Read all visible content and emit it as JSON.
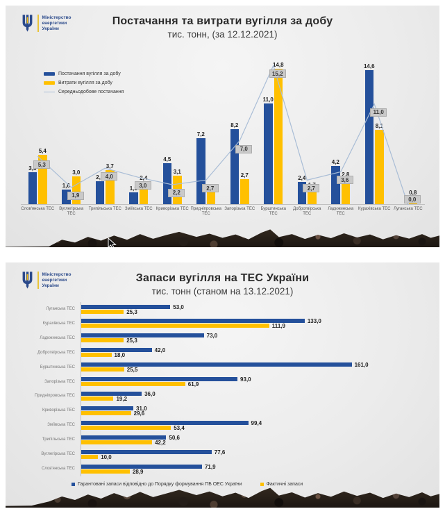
{
  "colors": {
    "blue": "#24509b",
    "yellow": "#ffc000",
    "line": "#a9bdd6",
    "label_box_bg": "#c9c9c9"
  },
  "logo": {
    "lines": [
      "Міністерство",
      "енергетики",
      "України"
    ]
  },
  "slide1": {
    "title": "Постачання та витрати вугілля за добу",
    "subtitle": "тис. тонн, (за 12.12.2021)",
    "legend": [
      {
        "label": "Постачання вугілля за добу",
        "swatch": "blue-bar"
      },
      {
        "label": "Витрати вугілля за добу",
        "swatch": "yellow-bar"
      },
      {
        "label": "Середньодобове постачання",
        "swatch": "gray-line"
      }
    ]
  },
  "slide2": {
    "title": "Запаси вугілля на ТЕС України",
    "subtitle": "тис. тонн (станом на 13.12.2021)",
    "legend": [
      {
        "label": "Гарантовані запаси відповідно до Порядку формування ПБ ОЕС України",
        "swatch": "blue-square"
      },
      {
        "label": "Фактичні запаси",
        "swatch": "yellow-square"
      }
    ]
  },
  "chart_data": [
    {
      "type": "bar",
      "title": "Постачання та витрати вугілля за добу",
      "subtitle": "тис. тонн, (за 12.12.2021)",
      "categories": [
        "Слов'янська ТЕС",
        "Вуглегірська ТЕС",
        "Трипільська ТЕС",
        "Зміївська ТЕС",
        "Криворізька ТЕС",
        "Придніпровська ТЕС",
        "Запорізька ТЕС",
        "Бурштинська ТЕС",
        "Добротвірська ТЕС",
        "Ладижинська ТЕС",
        "Курахівська ТЕС",
        "Луганська ТЕС"
      ],
      "series": [
        {
          "name": "Постачання вугілля за добу",
          "type": "bar",
          "color": "#24509b",
          "values": [
            3.5,
            1.6,
            2.5,
            1.3,
            4.5,
            7.2,
            8.2,
            11.0,
            2.4,
            4.2,
            14.6,
            0.0
          ],
          "labels": [
            "3,5",
            "1,6",
            "2,5",
            "1,3",
            "4,5",
            "7,2",
            "8,2",
            "11,0",
            "2,4",
            "4,2",
            "14,6",
            ""
          ]
        },
        {
          "name": "Витрати вугілля за добу",
          "type": "bar",
          "color": "#ffc000",
          "values": [
            5.4,
            3.0,
            3.7,
            2.4,
            3.1,
            1.3,
            2.7,
            14.8,
            1.7,
            2.8,
            8.1,
            0.8
          ],
          "labels": [
            "5,4",
            "3,0",
            "3,7",
            "2,4",
            "3,1",
            "1,3",
            "2,7",
            "14,8",
            "1,7",
            "2,8",
            "8,1",
            "0,8"
          ]
        },
        {
          "name": "Середньодобове постачання",
          "type": "line",
          "color": "#a9bdd6",
          "values": [
            5.3,
            1.9,
            4.0,
            3.0,
            2.2,
            2.7,
            7.0,
            15.2,
            2.7,
            3.6,
            11.0,
            0.0
          ],
          "labels": [
            "5,3",
            "1,9",
            "4,0",
            "3,0",
            "2,2",
            "2,7",
            "7,0",
            "15,2",
            "2,7",
            "3,6",
            "11,0",
            "0,0"
          ]
        }
      ],
      "ylim": [
        0,
        16
      ],
      "grid": false,
      "legend_position": "upper-left"
    },
    {
      "type": "bar",
      "orientation": "horizontal",
      "title": "Запаси вугілля на ТЕС України",
      "subtitle": "тис. тонн (станом на 13.12.2021)",
      "categories": [
        "Луганська ТЕС",
        "Курахівська ТЕС",
        "Ладижинська ТЕС",
        "Добротвірська ТЕС",
        "Бурштинська ТЕС",
        "Запорізька ТЕС",
        "Придніпровська ТЕС",
        "Криворізька ТЕС",
        "Зміївська ТЕС",
        "Трипільська ТЕС",
        "Вуглегірська ТЕС",
        "Слов'янська ТЕС"
      ],
      "series": [
        {
          "name": "Гарантовані запаси відповідно до Порядку формування ПБ ОЕС України",
          "type": "bar",
          "color": "#24509b",
          "values": [
            53.0,
            133.0,
            73.0,
            42.0,
            161.0,
            93.0,
            36.0,
            31.0,
            99.4,
            50.6,
            77.6,
            71.9
          ],
          "labels": [
            "53,0",
            "133,0",
            "73,0",
            "42,0",
            "161,0",
            "93,0",
            "36,0",
            "31,0",
            "99,4",
            "50,6",
            "77,6",
            "71,9"
          ]
        },
        {
          "name": "Фактичні запаси",
          "type": "bar",
          "color": "#ffc000",
          "values": [
            25.3,
            111.9,
            25.3,
            18.0,
            25.5,
            61.9,
            19.2,
            29.6,
            53.4,
            42.2,
            10.0,
            28.9
          ],
          "labels": [
            "25,3",
            "111,9",
            "25,3",
            "18,0",
            "25,5",
            "61,9",
            "19,2",
            "29,6",
            "53,4",
            "42,2",
            "10,0",
            "28,9"
          ]
        }
      ],
      "xlim": [
        0,
        170
      ],
      "grid": false,
      "legend_position": "bottom"
    }
  ]
}
